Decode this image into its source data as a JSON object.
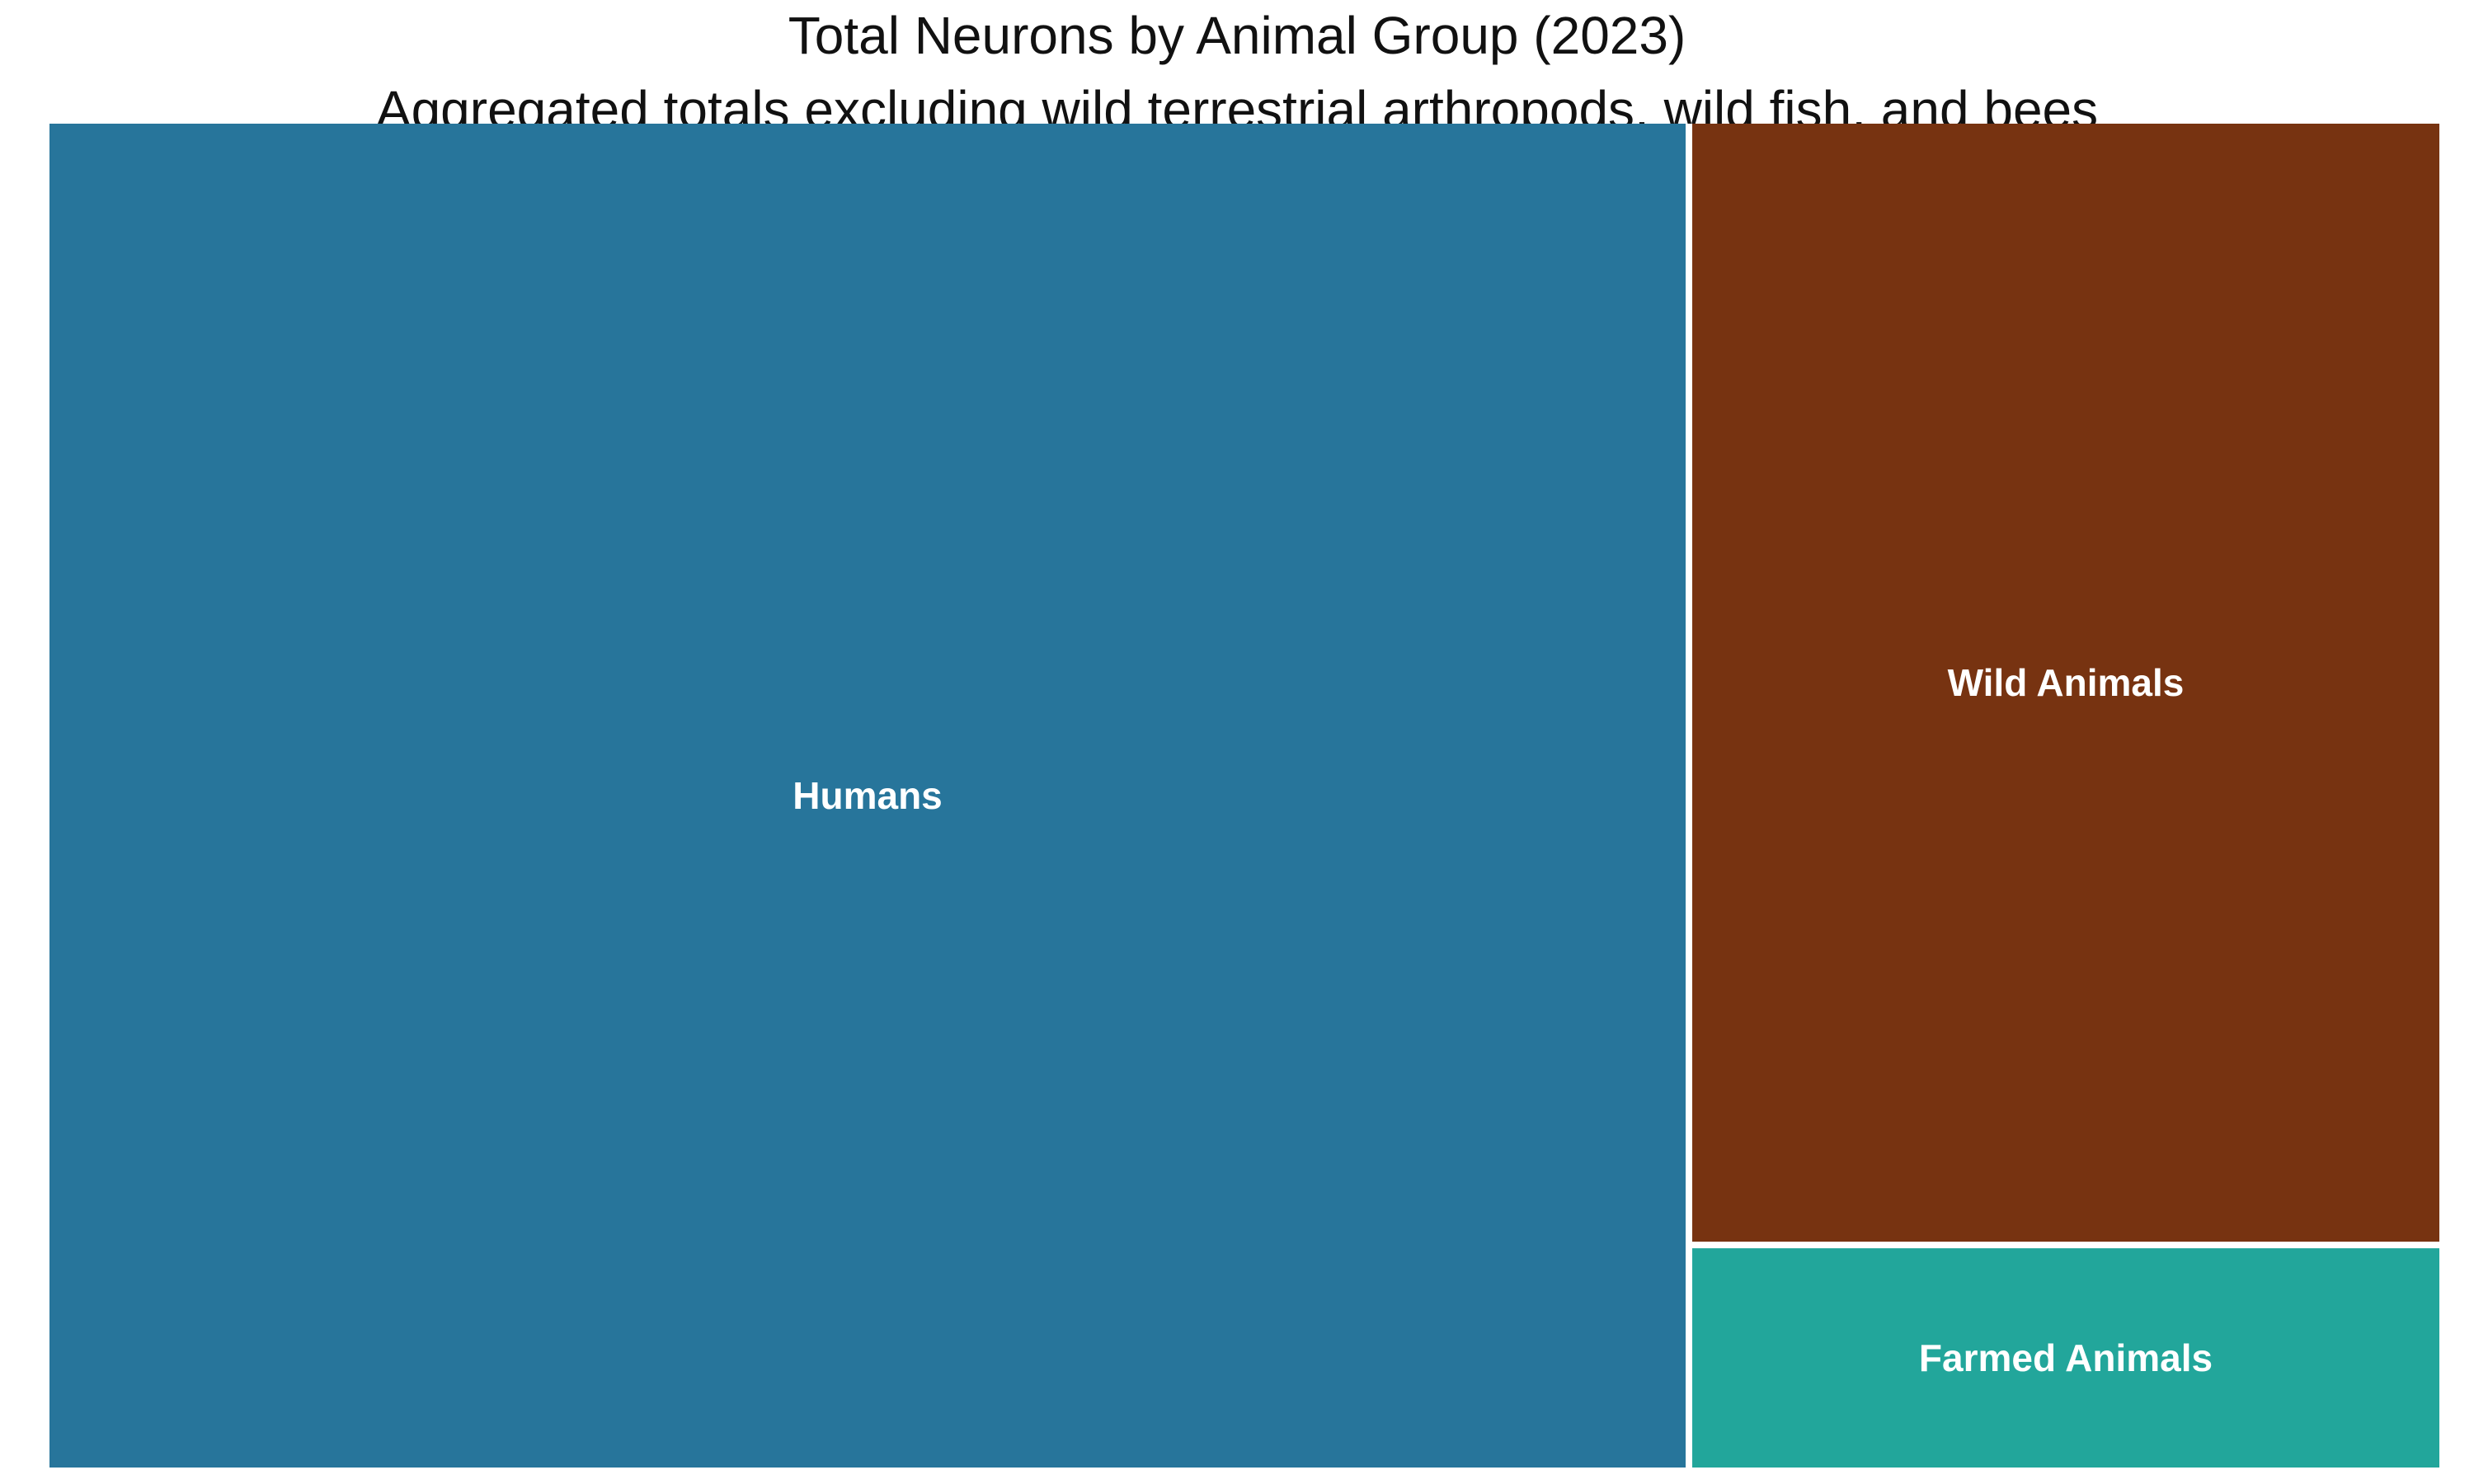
{
  "chart_data": {
    "type": "treemap",
    "title": "Total Neurons by Animal Group (2023)",
    "subtitle": "Aggregated totals excluding wild terrestrial arthropods, wild fish, and bees",
    "tiles": [
      {
        "name": "Humans",
        "share": 0.686,
        "color": "#27759b"
      },
      {
        "name": "Wild Animals",
        "share": 0.262,
        "color": "#773311"
      },
      {
        "name": "Farmed Animals",
        "share": 0.052,
        "color": "#22a69b"
      }
    ]
  }
}
